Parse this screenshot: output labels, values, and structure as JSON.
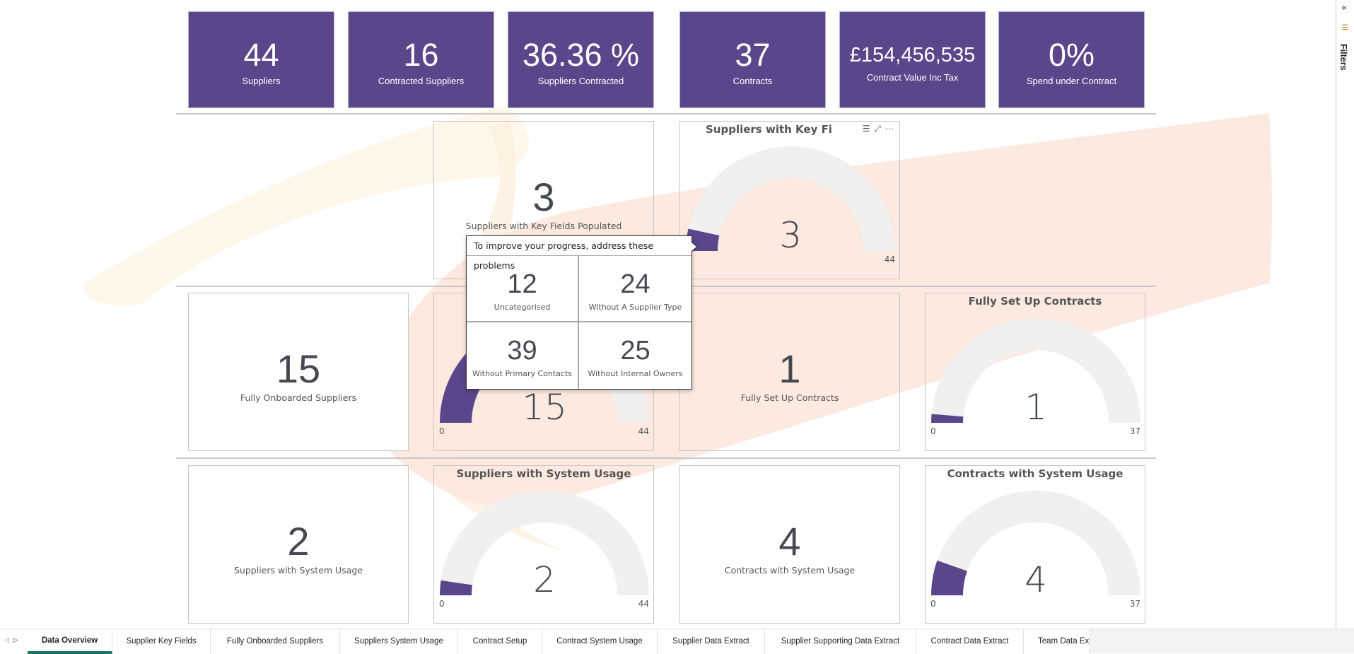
{
  "kpis": [
    {
      "value": "44",
      "label": "Suppliers"
    },
    {
      "value": "16",
      "label": "Contracted Suppliers"
    },
    {
      "value": "36.36 %",
      "label": "Suppliers Contracted"
    },
    {
      "value": "37",
      "label": "Contracts"
    },
    {
      "value": "£154,456,535",
      "label": "Contract Value Inc Tax"
    },
    {
      "value": "0%",
      "label": "Spend under Contract"
    }
  ],
  "cards": {
    "key_fields": {
      "value": "3",
      "label": "Suppliers with Key Fields Populated"
    },
    "onboarded": {
      "value": "15",
      "label": "Fully Onboarded Suppliers"
    },
    "setup": {
      "value": "1",
      "label": "Fully Set Up Contracts"
    },
    "sup_usage": {
      "value": "2",
      "label": "Suppliers with System Usage"
    },
    "con_usage": {
      "value": "4",
      "label": "Contracts with System Usage"
    }
  },
  "gauges": {
    "key_fields": {
      "title": "Suppliers with Key Fields Po",
      "value": 3,
      "value_label": "3",
      "min": 0,
      "max": 44,
      "max_label": "44"
    },
    "onboarded": {
      "title": "",
      "value": 15,
      "value_label": "15",
      "min": 0,
      "min_label": "0",
      "max": 44,
      "max_label": "44"
    },
    "setup": {
      "title": "Fully Set Up Contracts",
      "value": 1,
      "value_label": "1",
      "min": 0,
      "min_label": "0",
      "max": 37,
      "max_label": "37"
    },
    "sup_usage": {
      "title": "Suppliers with System Usage",
      "value": 2,
      "value_label": "2",
      "min": 0,
      "min_label": "0",
      "max": 44,
      "max_label": "44"
    },
    "con_usage": {
      "title": "Contracts with System Usage",
      "value": 4,
      "value_label": "4",
      "min": 0,
      "min_label": "0",
      "max": 37,
      "max_label": "37"
    }
  },
  "colors": {
    "accent": "#5b468b",
    "track": "#f1f0ef",
    "active_tab": "#117865"
  },
  "visual_header": {
    "filter_icon": "filter-icon",
    "focus_icon": "focus-mode-icon",
    "more_icon": "more-options-icon"
  },
  "tooltip": {
    "header": "To improve your progress, address these problems",
    "items": [
      {
        "value": "12",
        "label": "Uncategorised"
      },
      {
        "value": "24",
        "label": "Without A Supplier Type"
      },
      {
        "value": "39",
        "label": "Without Primary Contacts"
      },
      {
        "value": "25",
        "label": "Without Internal Owners"
      }
    ]
  },
  "tabs": [
    "Data Overview",
    "Supplier Key Fields",
    "Fully Onboarded Suppliers",
    "Suppliers System Usage",
    "Contract Setup",
    "Contract System Usage",
    "Supplier Data Extract",
    "Supplier Supporting Data Extract",
    "Contract Data Extract",
    "Team Data Ext"
  ],
  "active_tab": "Data Overview",
  "filters": {
    "label": "Filters"
  }
}
